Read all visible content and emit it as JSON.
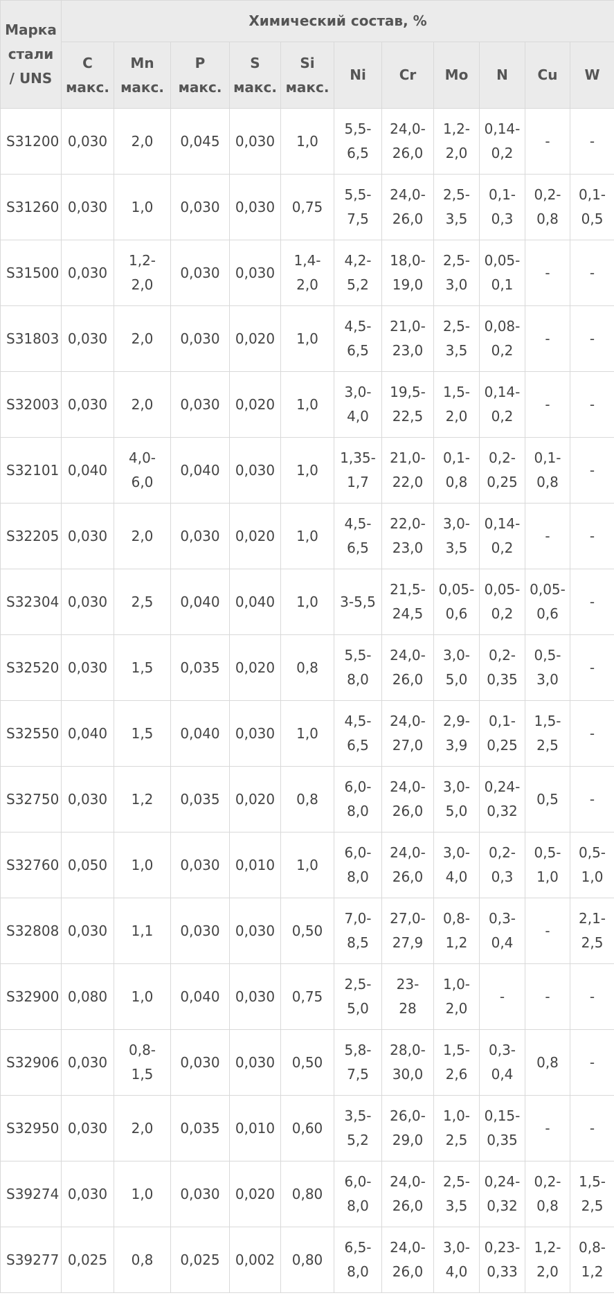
{
  "table": {
    "grade_header": [
      "Марка",
      "стали",
      "/ UNS"
    ],
    "group_header": "Химический состав, %",
    "columns": [
      [
        "C",
        "макс."
      ],
      [
        "Mn",
        "макс."
      ],
      [
        "P",
        "макс."
      ],
      [
        "S",
        "макс."
      ],
      [
        "Si",
        "макс."
      ],
      [
        "Ni"
      ],
      [
        "Cr"
      ],
      [
        "Mo"
      ],
      [
        "N"
      ],
      [
        "Cu"
      ],
      [
        "W"
      ]
    ],
    "rows": [
      {
        "grade": "S31200",
        "cells": [
          [
            "0,030"
          ],
          [
            "2,0"
          ],
          [
            "0,045"
          ],
          [
            "0,030"
          ],
          [
            "1,0"
          ],
          [
            "5,5-",
            "6,5"
          ],
          [
            "24,0-",
            "26,0"
          ],
          [
            "1,2-",
            "2,0"
          ],
          [
            "0,14-",
            "0,2"
          ],
          [
            "-"
          ],
          [
            "-"
          ]
        ]
      },
      {
        "grade": "S31260",
        "cells": [
          [
            "0,030"
          ],
          [
            "1,0"
          ],
          [
            "0,030"
          ],
          [
            "0,030"
          ],
          [
            "0,75"
          ],
          [
            "5,5-",
            "7,5"
          ],
          [
            "24,0-",
            "26,0"
          ],
          [
            "2,5-",
            "3,5"
          ],
          [
            "0,1-",
            "0,3"
          ],
          [
            "0,2-",
            "0,8"
          ],
          [
            "0,1-",
            "0,5"
          ]
        ]
      },
      {
        "grade": "S31500",
        "cells": [
          [
            "0,030"
          ],
          [
            "1,2-",
            "2,0"
          ],
          [
            "0,030"
          ],
          [
            "0,030"
          ],
          [
            "1,4-",
            "2,0"
          ],
          [
            "4,2-",
            "5,2"
          ],
          [
            "18,0-",
            "19,0"
          ],
          [
            "2,5-",
            "3,0"
          ],
          [
            "0,05-",
            "0,1"
          ],
          [
            "-"
          ],
          [
            "-"
          ]
        ]
      },
      {
        "grade": "S31803",
        "cells": [
          [
            "0,030"
          ],
          [
            "2,0"
          ],
          [
            "0,030"
          ],
          [
            "0,020"
          ],
          [
            "1,0"
          ],
          [
            "4,5-",
            "6,5"
          ],
          [
            "21,0-",
            "23,0"
          ],
          [
            "2,5-",
            "3,5"
          ],
          [
            "0,08-",
            "0,2"
          ],
          [
            "-"
          ],
          [
            "-"
          ]
        ]
      },
      {
        "grade": "S32003",
        "cells": [
          [
            "0,030"
          ],
          [
            "2,0"
          ],
          [
            "0,030"
          ],
          [
            "0,020"
          ],
          [
            "1,0"
          ],
          [
            "3,0-",
            "4,0"
          ],
          [
            "19,5-",
            "22,5"
          ],
          [
            "1,5-",
            "2,0"
          ],
          [
            "0,14-",
            "0,2"
          ],
          [
            "-"
          ],
          [
            "-"
          ]
        ]
      },
      {
        "grade": "S32101",
        "cells": [
          [
            "0,040"
          ],
          [
            "4,0-",
            "6,0"
          ],
          [
            "0,040"
          ],
          [
            "0,030"
          ],
          [
            "1,0"
          ],
          [
            "1,35-",
            "1,7"
          ],
          [
            "21,0-",
            "22,0"
          ],
          [
            "0,1-",
            "0,8"
          ],
          [
            "0,2-",
            "0,25"
          ],
          [
            "0,1-",
            "0,8"
          ],
          [
            "-"
          ]
        ]
      },
      {
        "grade": "S32205",
        "cells": [
          [
            "0,030"
          ],
          [
            "2,0"
          ],
          [
            "0,030"
          ],
          [
            "0,020"
          ],
          [
            "1,0"
          ],
          [
            "4,5-",
            "6,5"
          ],
          [
            "22,0-",
            "23,0"
          ],
          [
            "3,0-",
            "3,5"
          ],
          [
            "0,14-",
            "0,2"
          ],
          [
            "-"
          ],
          [
            "-"
          ]
        ]
      },
      {
        "grade": "S32304",
        "cells": [
          [
            "0,030"
          ],
          [
            "2,5"
          ],
          [
            "0,040"
          ],
          [
            "0,040"
          ],
          [
            "1,0"
          ],
          [
            "3-5,5"
          ],
          [
            "21,5-",
            "24,5"
          ],
          [
            "0,05-",
            "0,6"
          ],
          [
            "0,05-",
            "0,2"
          ],
          [
            "0,05-",
            "0,6"
          ],
          [
            "-"
          ]
        ]
      },
      {
        "grade": "S32520",
        "cells": [
          [
            "0,030"
          ],
          [
            "1,5"
          ],
          [
            "0,035"
          ],
          [
            "0,020"
          ],
          [
            "0,8"
          ],
          [
            "5,5-",
            "8,0"
          ],
          [
            "24,0-",
            "26,0"
          ],
          [
            "3,0-",
            "5,0"
          ],
          [
            "0,2-",
            "0,35"
          ],
          [
            "0,5-",
            "3,0"
          ],
          [
            "-"
          ]
        ]
      },
      {
        "grade": "S32550",
        "cells": [
          [
            "0,040"
          ],
          [
            "1,5"
          ],
          [
            "0,040"
          ],
          [
            "0,030"
          ],
          [
            "1,0"
          ],
          [
            "4,5-",
            "6,5"
          ],
          [
            "24,0-",
            "27,0"
          ],
          [
            "2,9-",
            "3,9"
          ],
          [
            "0,1-",
            "0,25"
          ],
          [
            "1,5-",
            "2,5"
          ],
          [
            "-"
          ]
        ]
      },
      {
        "grade": "S32750",
        "cells": [
          [
            "0,030"
          ],
          [
            "1,2"
          ],
          [
            "0,035"
          ],
          [
            "0,020"
          ],
          [
            "0,8"
          ],
          [
            "6,0-",
            "8,0"
          ],
          [
            "24,0-",
            "26,0"
          ],
          [
            "3,0-",
            "5,0"
          ],
          [
            "0,24-",
            "0,32"
          ],
          [
            "0,5"
          ],
          [
            "-"
          ]
        ]
      },
      {
        "grade": "S32760",
        "cells": [
          [
            "0,050"
          ],
          [
            "1,0"
          ],
          [
            "0,030"
          ],
          [
            "0,010"
          ],
          [
            "1,0"
          ],
          [
            "6,0-",
            "8,0"
          ],
          [
            "24,0-",
            "26,0"
          ],
          [
            "3,0-",
            "4,0"
          ],
          [
            "0,2-",
            "0,3"
          ],
          [
            "0,5-",
            "1,0"
          ],
          [
            "0,5-",
            "1,0"
          ]
        ]
      },
      {
        "grade": "S32808",
        "cells": [
          [
            "0,030"
          ],
          [
            "1,1"
          ],
          [
            "0,030"
          ],
          [
            "0,030"
          ],
          [
            "0,50"
          ],
          [
            "7,0-",
            "8,5"
          ],
          [
            "27,0-",
            "27,9"
          ],
          [
            "0,8-",
            "1,2"
          ],
          [
            "0,3-",
            "0,4"
          ],
          [
            "-"
          ],
          [
            "2,1-",
            "2,5"
          ]
        ]
      },
      {
        "grade": "S32900",
        "cells": [
          [
            "0,080"
          ],
          [
            "1,0"
          ],
          [
            "0,040"
          ],
          [
            "0,030"
          ],
          [
            "0,75"
          ],
          [
            "2,5-",
            "5,0"
          ],
          [
            "23-",
            "28"
          ],
          [
            "1,0-",
            "2,0"
          ],
          [
            "-"
          ],
          [
            "-"
          ],
          [
            "-"
          ]
        ]
      },
      {
        "grade": "S32906",
        "cells": [
          [
            "0,030"
          ],
          [
            "0,8-",
            "1,5"
          ],
          [
            "0,030"
          ],
          [
            "0,030"
          ],
          [
            "0,50"
          ],
          [
            "5,8-",
            "7,5"
          ],
          [
            "28,0-",
            "30,0"
          ],
          [
            "1,5-",
            "2,6"
          ],
          [
            "0,3-",
            "0,4"
          ],
          [
            "0,8"
          ],
          [
            "-"
          ]
        ]
      },
      {
        "grade": "S32950",
        "cells": [
          [
            "0,030"
          ],
          [
            "2,0"
          ],
          [
            "0,035"
          ],
          [
            "0,010"
          ],
          [
            "0,60"
          ],
          [
            "3,5-",
            "5,2"
          ],
          [
            "26,0-",
            "29,0"
          ],
          [
            "1,0-",
            "2,5"
          ],
          [
            "0,15-",
            "0,35"
          ],
          [
            "-"
          ],
          [
            "-"
          ]
        ]
      },
      {
        "grade": "S39274",
        "cells": [
          [
            "0,030"
          ],
          [
            "1,0"
          ],
          [
            "0,030"
          ],
          [
            "0,020"
          ],
          [
            "0,80"
          ],
          [
            "6,0-",
            "8,0"
          ],
          [
            "24,0-",
            "26,0"
          ],
          [
            "2,5-",
            "3,5"
          ],
          [
            "0,24-",
            "0,32"
          ],
          [
            "0,2-",
            "0,8"
          ],
          [
            "1,5-",
            "2,5"
          ]
        ]
      },
      {
        "grade": "S39277",
        "cells": [
          [
            "0,025"
          ],
          [
            "0,8"
          ],
          [
            "0,025"
          ],
          [
            "0,002"
          ],
          [
            "0,80"
          ],
          [
            "6,5-",
            "8,0"
          ],
          [
            "24,0-",
            "26,0"
          ],
          [
            "3,0-",
            "4,0"
          ],
          [
            "0,23-",
            "0,33"
          ],
          [
            "1,2-",
            "2,0"
          ],
          [
            "0,8-",
            "1,2"
          ]
        ]
      }
    ]
  }
}
